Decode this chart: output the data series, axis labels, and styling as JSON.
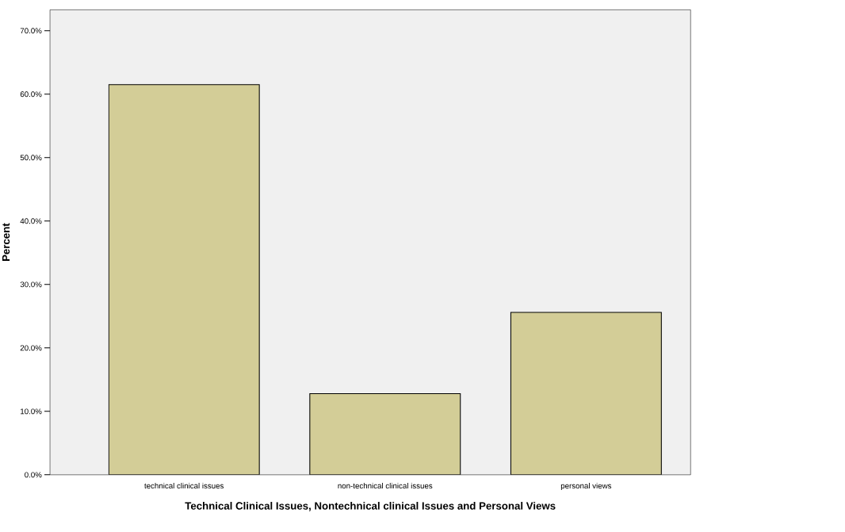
{
  "chart_data": {
    "type": "bar",
    "xlabel": "Technical Clinical Issues, Nontechnical clinical Issues and Personal Views",
    "ylabel": "Percent",
    "categories": [
      "technical clinical issues",
      "non-technical clinical issues",
      "personal views"
    ],
    "values": [
      61.5,
      12.8,
      25.6
    ],
    "color": "#d3cd97",
    "ylim": [
      0,
      73.3
    ],
    "yticks": [
      {
        "value": 0,
        "label": "0.0%"
      },
      {
        "value": 10,
        "label": "10.0%"
      },
      {
        "value": 20,
        "label": "20.0%"
      },
      {
        "value": 30,
        "label": "30.0%"
      },
      {
        "value": 40,
        "label": "40.0%"
      },
      {
        "value": 50,
        "label": "50.0%"
      },
      {
        "value": 60,
        "label": "60.0%"
      },
      {
        "value": 70,
        "label": "70.0%"
      }
    ]
  }
}
